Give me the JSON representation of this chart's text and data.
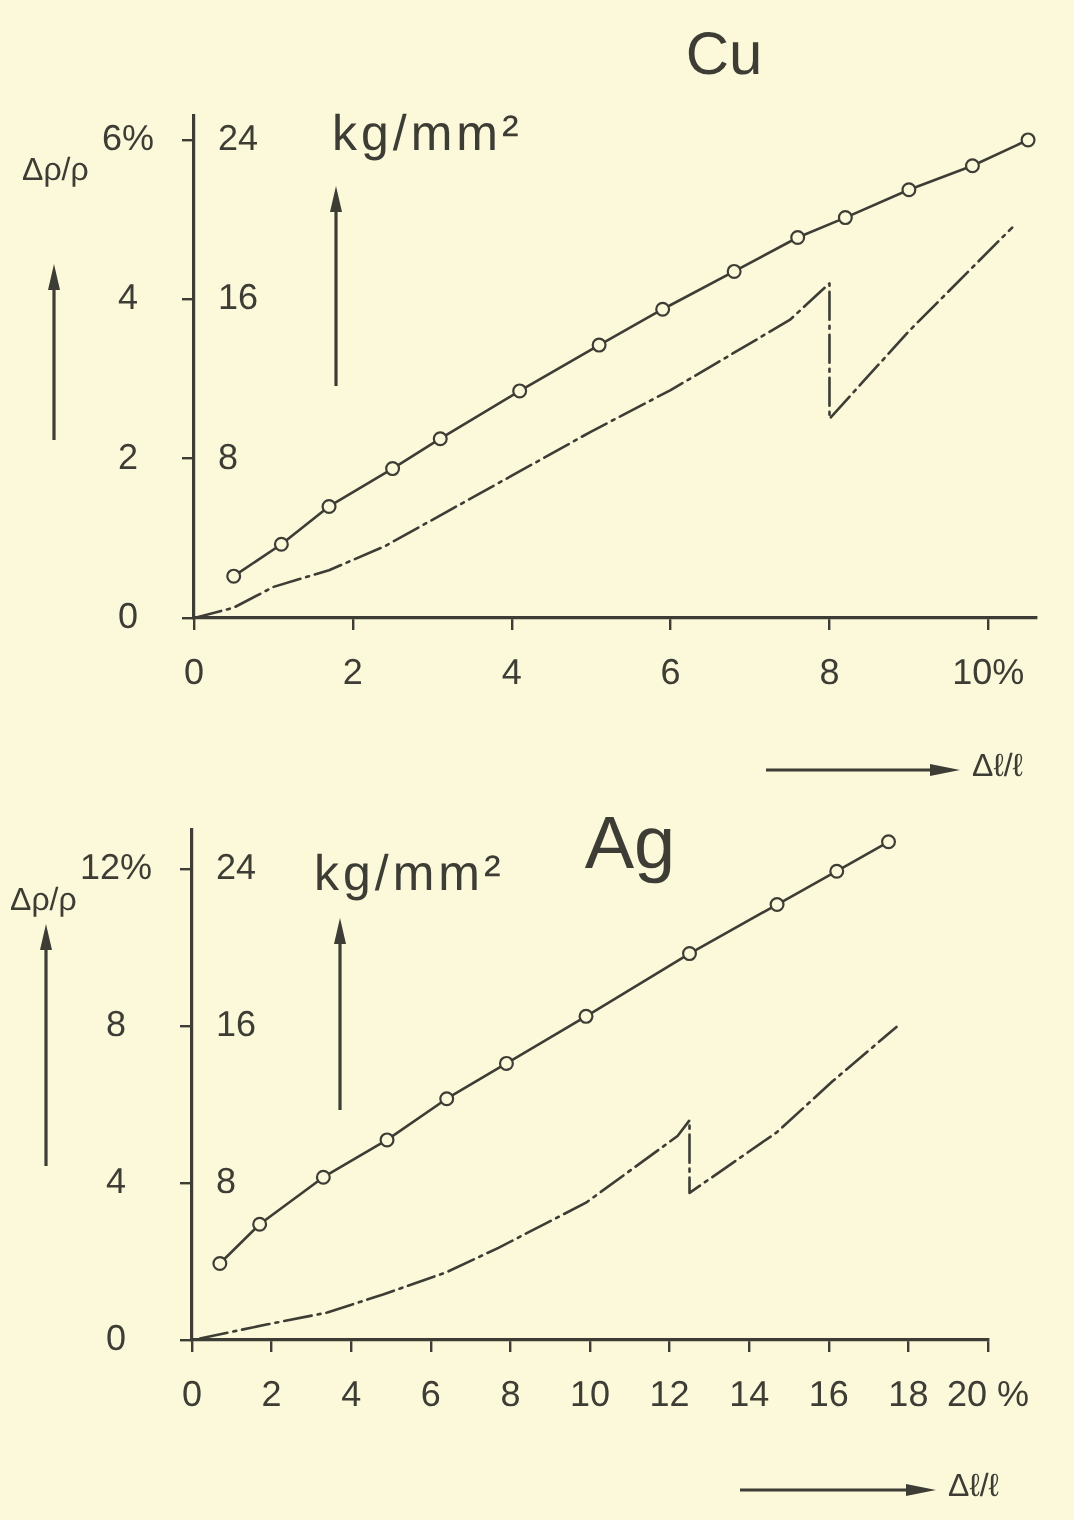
{
  "chart_data": [
    {
      "type": "line",
      "title": "Cu",
      "xlabel": "Δℓ/ℓ",
      "ylabel": "Δρ/ρ",
      "y2label": "kg/mm²",
      "xlim": [
        0,
        10.6
      ],
      "xticks": [
        0,
        2,
        4,
        6,
        8,
        {
          "value": 10,
          "label": "10%"
        }
      ],
      "ylim": [
        0,
        6.3
      ],
      "yticks": [
        0,
        2,
        4,
        {
          "value": 6,
          "label": "6%"
        }
      ],
      "y2lim": [
        0,
        25.2
      ],
      "y2ticks": [
        8,
        16,
        24
      ],
      "series": [
        {
          "color": "#3d3d35",
          "axis": "y2",
          "marker": "circle",
          "line_style": "solid",
          "x": [
            0.5,
            1.1,
            1.7,
            2.5,
            3.1,
            4.1,
            5.1,
            5.9,
            6.8,
            7.6,
            8.2,
            9.0,
            9.8,
            10.5
          ],
          "values": [
            2.1,
            3.7,
            5.6,
            7.5,
            9.0,
            11.4,
            13.7,
            15.5,
            17.4,
            19.1,
            20.1,
            21.5,
            22.7,
            24.0
          ]
        },
        {
          "color": "#3d3d35",
          "axis": "y",
          "marker": "none",
          "line_style": "dashed",
          "x": [
            0,
            0.5,
            1.0,
            1.7,
            2.4,
            3.9,
            5.0,
            6.0,
            7.5,
            8.0,
            8.0,
            9.0,
            10.3
          ],
          "values": [
            0,
            0.13,
            0.39,
            0.6,
            0.9,
            1.73,
            2.34,
            2.86,
            3.74,
            4.2,
            2.5,
            3.6,
            4.9
          ]
        }
      ]
    },
    {
      "type": "line",
      "title": "Ag",
      "xlabel": "Δℓ/ℓ",
      "ylabel": "Δρ/ρ",
      "y2label": "kg/mm²",
      "xlim": [
        0,
        20
      ],
      "xticks": [
        0,
        2,
        4,
        6,
        8,
        10,
        12,
        14,
        16,
        18,
        {
          "value": 20,
          "label": "20 %"
        }
      ],
      "ylim": [
        0,
        13
      ],
      "yticks": [
        0,
        4,
        8,
        {
          "value": 12,
          "label": "12%"
        }
      ],
      "y2lim": [
        0,
        26
      ],
      "y2ticks": [
        8,
        16,
        24
      ],
      "series": [
        {
          "color": "#3d3d35",
          "axis": "y2",
          "marker": "circle",
          "line_style": "solid",
          "x": [
            0.7,
            1.7,
            3.3,
            4.9,
            6.4,
            7.9,
            9.9,
            12.5,
            14.7,
            16.2,
            17.5
          ],
          "values": [
            3.9,
            5.9,
            8.3,
            10.2,
            12.3,
            14.1,
            16.5,
            19.7,
            22.2,
            23.9,
            25.4
          ]
        },
        {
          "color": "#3d3d35",
          "axis": "y",
          "marker": "none",
          "line_style": "dashed",
          "x": [
            0.2,
            1.9,
            3.4,
            4.8,
            6.4,
            7.7,
            9.9,
            12.2,
            12.5,
            12.5,
            14.7,
            16.1,
            17.7
          ],
          "values": [
            0.04,
            0.4,
            0.7,
            1.16,
            1.73,
            2.35,
            3.5,
            5.2,
            5.6,
            3.75,
            5.3,
            6.6,
            7.98
          ]
        }
      ]
    }
  ]
}
